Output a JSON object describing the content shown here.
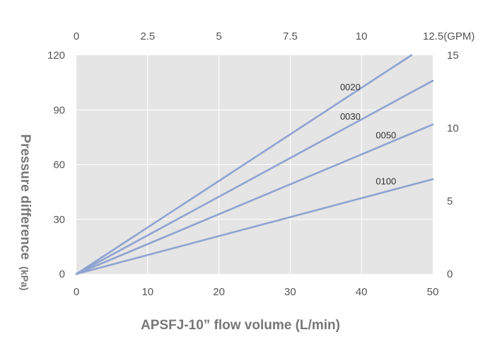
{
  "chart_data": {
    "type": "line",
    "xlabel": "APSFJ-10” flow volume (L/min)",
    "ylabel": "Pressure difference",
    "ylabel_unit": "(kPa)",
    "xlim": [
      0,
      50
    ],
    "ylim": [
      0,
      120
    ],
    "x_ticks": [
      "0",
      "10",
      "20",
      "30",
      "40",
      "50"
    ],
    "y_ticks": [
      "0",
      "30",
      "60",
      "90",
      "120"
    ],
    "x2_ticks": [
      "0",
      "2.5",
      "5",
      "7.5",
      "10",
      "12.5(GPM)"
    ],
    "y2_ticks": [
      "0",
      "5",
      "10",
      "15"
    ],
    "grid": true,
    "colors": {
      "line": "#8fa3cf",
      "plot_bg": "#e5e5e5",
      "grid": "#ffffff",
      "tick_text": "#555555",
      "axis_title": "#777777"
    },
    "series": [
      {
        "name": "0020",
        "x": [
          0,
          47
        ],
        "y": [
          0,
          120
        ]
      },
      {
        "name": "0030",
        "x": [
          0,
          50
        ],
        "y": [
          0,
          106
        ]
      },
      {
        "name": "0050",
        "x": [
          0,
          50
        ],
        "y": [
          0,
          82
        ]
      },
      {
        "name": "0100",
        "x": [
          0,
          50
        ],
        "y": [
          0,
          52
        ]
      }
    ]
  }
}
